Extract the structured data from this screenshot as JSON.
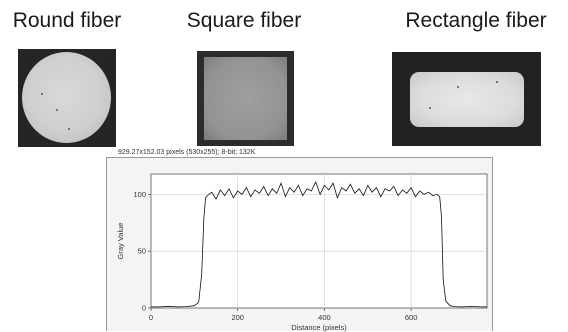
{
  "fibers": [
    {
      "title": "Round fiber",
      "image": "round-fiber-cross-section"
    },
    {
      "title": "Square fiber",
      "image": "square-fiber-cross-section"
    },
    {
      "title": "Rectangle fiber",
      "image": "rectangle-fiber-cross-section"
    }
  ],
  "plot": {
    "caption": "929.27x152.03 pixels (530x255); 8-bit; 132K"
  },
  "chart_data": {
    "type": "line",
    "xlabel": "Distance (pixels)",
    "ylabel": "Gray Value",
    "x_ticks": [
      0,
      200,
      400,
      600
    ],
    "y_ticks": [
      0,
      50,
      100
    ],
    "xlim": [
      0,
      775
    ],
    "ylim": [
      0,
      118
    ],
    "grid": true,
    "series": [
      {
        "x": [
          0,
          20,
          40,
          60,
          80,
          100,
          110,
          117,
          122,
          126,
          130,
          140,
          150,
          160,
          170,
          180,
          190,
          200,
          210,
          220,
          230,
          240,
          250,
          260,
          270,
          280,
          290,
          300,
          310,
          320,
          330,
          340,
          350,
          360,
          370,
          380,
          390,
          400,
          410,
          420,
          430,
          440,
          450,
          460,
          470,
          480,
          490,
          500,
          510,
          520,
          530,
          540,
          550,
          560,
          570,
          580,
          590,
          600,
          610,
          620,
          630,
          640,
          650,
          660,
          666,
          670,
          674,
          680,
          690,
          700,
          720,
          740,
          760,
          775
        ],
        "y": [
          1,
          1,
          1.5,
          1,
          1.2,
          2,
          5,
          30,
          80,
          97,
          99,
          102,
          96,
          104,
          99,
          105,
          97,
          103,
          100,
          106,
          98,
          104,
          101,
          107,
          99,
          105,
          101,
          110,
          98,
          106,
          102,
          108,
          99,
          105,
          103,
          111,
          100,
          108,
          104,
          110,
          97,
          106,
          103,
          109,
          101,
          105,
          99,
          108,
          102,
          106,
          98,
          105,
          103,
          107,
          99,
          104,
          101,
          106,
          98,
          103,
          100,
          102,
          99,
          100,
          98,
          80,
          25,
          6,
          2,
          1.2,
          1,
          1.4,
          1,
          1
        ]
      }
    ]
  }
}
